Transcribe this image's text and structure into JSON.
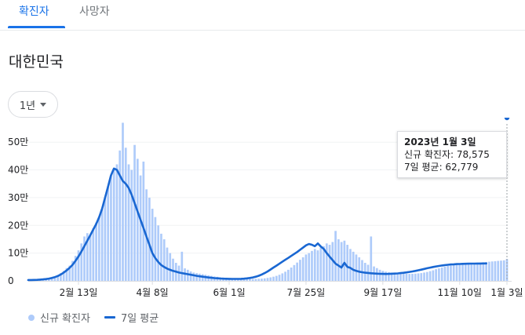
{
  "tabs": [
    {
      "label": "확진자",
      "active": true
    },
    {
      "label": "사망자",
      "active": false
    }
  ],
  "region": "대한민국",
  "range_selector": {
    "label": "1년"
  },
  "chart_data": {
    "type": "bar",
    "y_ticks": [
      "0",
      "10만",
      "20만",
      "30만",
      "40만",
      "50만"
    ],
    "ylim": [
      0,
      560000
    ],
    "x_ticks": [
      "2월 13일",
      "4월 8일",
      "6월 1일",
      "7월 25일",
      "9월 17일",
      "11월 10일",
      "1월 3일"
    ],
    "legend": [
      "신규 확진자",
      "7일 평균"
    ],
    "series": [
      {
        "name": "신규 확진자",
        "type": "bar",
        "color": "#aecbfa",
        "values": [
          3000,
          3200,
          3500,
          4000,
          4800,
          6000,
          7500,
          9500,
          12000,
          16000,
          21000,
          28000,
          36000,
          46000,
          55000,
          72000,
          90000,
          110000,
          135000,
          160000,
          172000,
          165000,
          190000,
          210000,
          230000,
          260000,
          300000,
          340000,
          380000,
          400000,
          420000,
          470000,
          570000,
          480000,
          420000,
          400000,
          490000,
          440000,
          380000,
          430000,
          330000,
          300000,
          260000,
          230000,
          200000,
          170000,
          150000,
          120000,
          100000,
          80000,
          65000,
          55000,
          105000,
          45000,
          40000,
          34000,
          30000,
          28000,
          26000,
          24000,
          22000,
          20000,
          18000,
          16000,
          14500,
          13000,
          12000,
          11000,
          10000,
          9500,
          9000,
          8500,
          8000,
          7500,
          7200,
          7000,
          7000,
          7200,
          7500,
          8000,
          9000,
          10500,
          12500,
          15000,
          18000,
          22000,
          27000,
          33000,
          40000,
          48000,
          57000,
          66000,
          76000,
          85000,
          95000,
          100000,
          108000,
          115000,
          110000,
          120000,
          125000,
          135000,
          130000,
          140000,
          180000,
          150000,
          140000,
          145000,
          130000,
          115000,
          105000,
          95000,
          85000,
          75000,
          65000,
          58000,
          160000,
          52000,
          46000,
          40000,
          36000,
          33000,
          31000,
          30000,
          29000,
          28000,
          27000,
          26000,
          25500,
          25000,
          25500,
          26000,
          27000,
          28000,
          30000,
          32000,
          35000,
          38000,
          42000,
          45000,
          48000,
          51000,
          54000,
          55000,
          57000,
          58000,
          59000,
          60000,
          61000,
          62000,
          63000,
          64000,
          65000,
          66000,
          67000,
          68000,
          69000,
          70000,
          71000,
          72000,
          73000,
          74000,
          78575
        ]
      },
      {
        "name": "7일 평균",
        "type": "line",
        "color": "#1967d2",
        "values": [
          3000,
          3150,
          3400,
          3800,
          4400,
          5300,
          6600,
          8300,
          10500,
          13500,
          17500,
          23000,
          30000,
          38000,
          47000,
          58000,
          72000,
          88000,
          106000,
          125000,
          145000,
          165000,
          185000,
          205000,
          230000,
          260000,
          300000,
          340000,
          380000,
          405000,
          400000,
          380000,
          360000,
          350000,
          335000,
          310000,
          280000,
          250000,
          220000,
          190000,
          160000,
          130000,
          100000,
          82000,
          68000,
          57000,
          50000,
          44000,
          40000,
          36000,
          33000,
          30000,
          28000,
          26000,
          24000,
          22000,
          20000,
          18000,
          16500,
          15000,
          13500,
          12200,
          11000,
          10000,
          9200,
          8500,
          8000,
          7600,
          7300,
          7100,
          7000,
          7100,
          7400,
          8000,
          9000,
          10500,
          12500,
          15000,
          18500,
          23000,
          28000,
          34000,
          41000,
          48000,
          55000,
          62000,
          69000,
          76000,
          83000,
          90000,
          97000,
          104000,
          112000,
          120000,
          128000,
          133000,
          130000,
          125000,
          135000,
          124000,
          115000,
          100000,
          87000,
          75000,
          62000,
          55000,
          48000,
          65000,
          50000,
          47000,
          40000,
          36000,
          33000,
          31000,
          29500,
          28500,
          27500,
          26500,
          26000,
          25500,
          25200,
          25000,
          25200,
          25600,
          26200,
          27000,
          28000,
          29200,
          30600,
          32200,
          34000,
          36000,
          38200,
          40500,
          43000,
          45400,
          47800,
          50000,
          52000,
          53800,
          55400,
          56800,
          58000,
          59000,
          59800,
          60400,
          60900,
          61300,
          61600,
          61900,
          62100,
          62300,
          62500,
          62600,
          62700,
          62779
        ]
      }
    ]
  },
  "tooltip": {
    "date": "2023년 1월 3일",
    "new_cases_label": "신규 확진자: 78,575",
    "avg_label": "7일 평균: 62,779"
  },
  "legend": {
    "bars_label": "신규 확진자",
    "line_label": "7일 평균"
  },
  "colors": {
    "accent": "#1a73e8",
    "bar": "#aecbfa",
    "line": "#1967d2",
    "axis": "#dadce0"
  }
}
